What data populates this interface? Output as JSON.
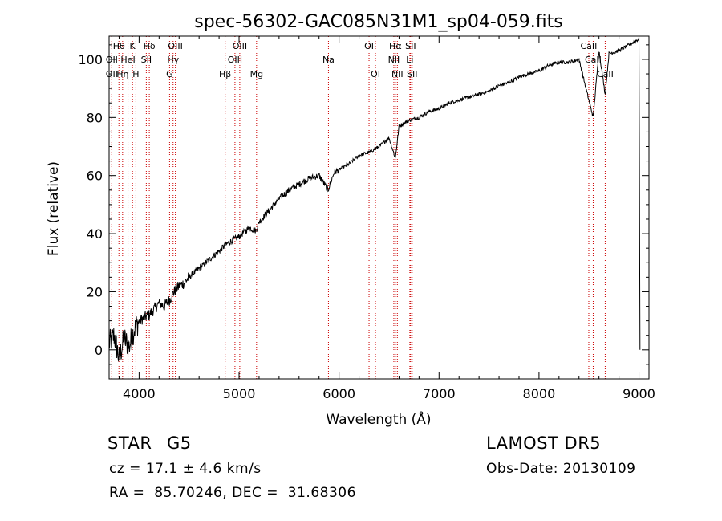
{
  "chart_data": {
    "type": "line",
    "title": "spec-56302-GAC085N31M1_sp04-059.fits",
    "xlabel": "Wavelength (Å)",
    "ylabel": "Flux (relative)",
    "xlim": [
      3700,
      9100
    ],
    "ylim": [
      -10,
      108
    ],
    "xticks": [
      4000,
      5000,
      6000,
      7000,
      8000,
      9000
    ],
    "yticks": [
      0,
      20,
      40,
      60,
      80,
      100
    ],
    "grid": false,
    "line_color": "#000000",
    "marker_color": "#cc0000",
    "series": [
      {
        "x": [
          3700,
          3750,
          3800,
          3850,
          3900,
          3950,
          4000,
          4050,
          4100,
          4150,
          4200,
          4250,
          4300,
          4350,
          4400,
          4450,
          4500,
          4600,
          4700,
          4800,
          4860,
          4900,
          5000,
          5100,
          5170,
          5200,
          5300,
          5400,
          5500,
          5600,
          5700,
          5800,
          5890,
          5950,
          6000,
          6100,
          6200,
          6300,
          6400,
          6500,
          6563,
          6600,
          6700,
          6800,
          6900,
          7000,
          7100,
          7200,
          7300,
          7400,
          7500,
          7600,
          7700,
          7800,
          7900,
          8000,
          8100,
          8200,
          8300,
          8400,
          8498,
          8542,
          8600,
          8662,
          8700,
          8800,
          8900,
          9000,
          9010
        ],
        "y": [
          2,
          5,
          -3,
          4,
          1,
          7,
          10,
          11,
          12,
          14,
          16,
          15,
          17,
          20,
          22,
          23,
          25,
          28,
          31,
          34,
          36,
          37,
          39,
          42,
          41,
          44,
          48,
          52,
          55,
          57,
          59,
          60,
          55,
          61,
          62,
          64,
          67,
          68,
          70,
          73,
          66,
          77,
          79,
          80,
          82,
          83,
          85,
          86,
          87,
          88,
          89,
          91,
          92,
          94,
          95,
          96,
          98,
          99,
          99,
          100,
          86,
          80,
          103,
          88,
          102,
          103,
          105,
          107,
          0
        ]
      }
    ],
    "line_markers": [
      {
        "label": "Hθ",
        "x": 3798,
        "row": 1
      },
      {
        "label": "OII",
        "x": 3727,
        "row": 2
      },
      {
        "label": "OII",
        "x": 3727,
        "row": 3
      },
      {
        "label": "Hη",
        "x": 3835,
        "row": 3
      },
      {
        "label": "HeI",
        "x": 3889,
        "row": 2
      },
      {
        "label": "K",
        "x": 3934,
        "row": 1
      },
      {
        "label": "H",
        "x": 3968,
        "row": 3
      },
      {
        "label": "SII",
        "x": 4072,
        "row": 2
      },
      {
        "label": "Hδ",
        "x": 4102,
        "row": 1
      },
      {
        "label": "Hγ",
        "x": 4340,
        "row": 2
      },
      {
        "label": "G",
        "x": 4305,
        "row": 3
      },
      {
        "label": "OIII",
        "x": 4363,
        "row": 1
      },
      {
        "label": "Hβ",
        "x": 4861,
        "row": 3
      },
      {
        "label": "OIII",
        "x": 4959,
        "row": 2
      },
      {
        "label": "OIII",
        "x": 5007,
        "row": 1
      },
      {
        "label": "Mg",
        "x": 5175,
        "row": 3
      },
      {
        "label": "Na",
        "x": 5894,
        "row": 2
      },
      {
        "label": "OI",
        "x": 6300,
        "row": 1
      },
      {
        "label": "OI",
        "x": 6364,
        "row": 3
      },
      {
        "label": "Hα",
        "x": 6563,
        "row": 1
      },
      {
        "label": "NII",
        "x": 6548,
        "row": 2
      },
      {
        "label": "NII",
        "x": 6583,
        "row": 3
      },
      {
        "label": "Li",
        "x": 6708,
        "row": 2
      },
      {
        "label": "SII",
        "x": 6716,
        "row": 1
      },
      {
        "label": "SII",
        "x": 6731,
        "row": 3
      },
      {
        "label": "CaII",
        "x": 8498,
        "row": 1
      },
      {
        "label": "CaII",
        "x": 8542,
        "row": 2
      },
      {
        "label": "CaII",
        "x": 8662,
        "row": 3
      }
    ]
  },
  "info": {
    "object_class": "STAR",
    "subclass": "G5",
    "survey": "LAMOST DR5",
    "velocity": "cz = 17.1 ± 4.6 km/s",
    "obs_date": "Obs-Date: 20130109",
    "coords": "RA =  85.70246, DEC =  31.68306"
  }
}
